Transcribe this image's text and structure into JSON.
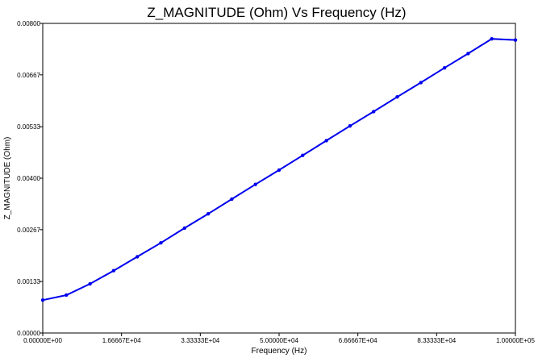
{
  "chart_data": {
    "type": "line",
    "title": "Z_MAGNITUDE (Ohm) Vs Frequency (Hz)",
    "xlabel": "Frequency (Hz)",
    "ylabel": "Z_MAGNITUDE (Ohm)",
    "xlim": [
      0,
      100000
    ],
    "ylim": [
      0,
      0.008
    ],
    "x_ticks": [
      0,
      16666.7,
      33333.3,
      50000,
      66666.7,
      83333.3,
      100000
    ],
    "x_tick_labels": [
      "0.00000E+00",
      "1.66667E+04",
      "3.33333E+04",
      "5.00000E+04",
      "6.66667E+04",
      "8.33333E+04",
      "1.00000E+05"
    ],
    "y_ticks": [
      0,
      0.00133,
      0.00267,
      0.004,
      0.00533,
      0.00667,
      0.008
    ],
    "y_tick_labels": [
      "0.00000",
      "0.00133",
      "0.00267",
      "0.00400",
      "0.00533",
      "0.00667",
      "0.00800"
    ],
    "grid": false,
    "color": "#0000ee",
    "series": [
      {
        "x": [
          0,
          5000,
          10000,
          15000,
          20000,
          25000,
          30000,
          35000,
          40000,
          45000,
          50000,
          55000,
          60000,
          65000,
          70000,
          75000,
          80000,
          85000,
          90000,
          95000,
          100000
        ],
        "values": [
          0.00085,
          0.00098,
          0.00127,
          0.00161,
          0.00197,
          0.00233,
          0.00271,
          0.00308,
          0.00346,
          0.00384,
          0.00421,
          0.00459,
          0.00497,
          0.00535,
          0.00572,
          0.0061,
          0.00647,
          0.00685,
          0.00722,
          0.0076,
          0.00757
        ]
      }
    ]
  }
}
